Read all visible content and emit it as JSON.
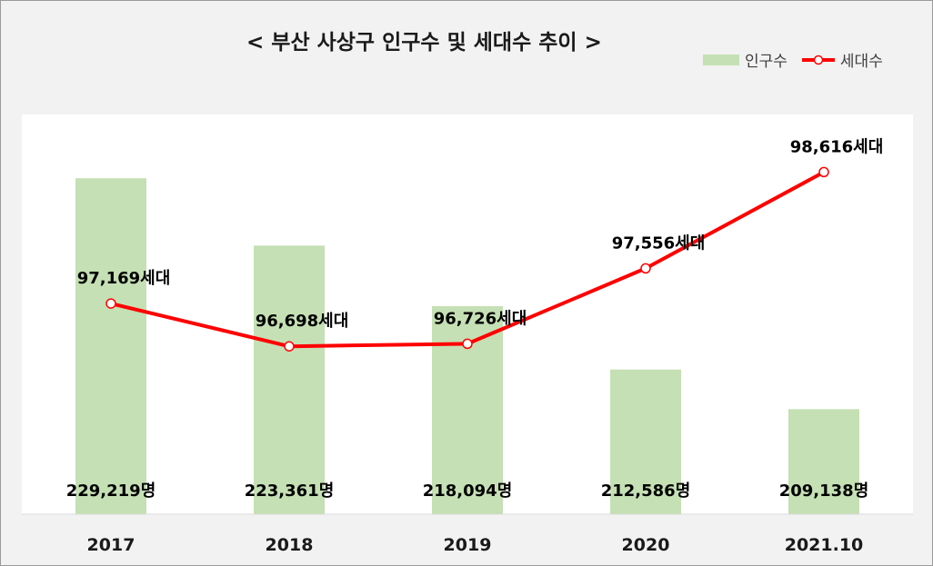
{
  "title": "< 부산 사상구 인구수 및 세대수 추이 >",
  "legend": {
    "bar_label": "인구수",
    "line_label": "세대수"
  },
  "colors": {
    "bar": "#c5e0b4",
    "line": "#ff0000",
    "background": "#f2f2f2",
    "plot": "#ffffff"
  },
  "chart_data": {
    "type": "bar",
    "title": "< 부산 사상구 인구수 및 세대수 추이 >",
    "categories": [
      "2017",
      "2018",
      "2019",
      "2020",
      "2021.10"
    ],
    "series": [
      {
        "name": "인구수",
        "type": "bar",
        "values": [
          229219,
          223361,
          218094,
          212586,
          209138
        ],
        "labels": [
          "229,219명",
          "223,361명",
          "218,094명",
          "212,586명",
          "209,138명"
        ],
        "ylim": [
          200000,
          232000
        ]
      },
      {
        "name": "세대수",
        "type": "line",
        "values": [
          97169,
          96698,
          96726,
          97556,
          98616
        ],
        "labels": [
          "97,169세대",
          "96,698세대",
          "96,726세대",
          "97,556세대",
          "98,616세대"
        ],
        "ylim": [
          95900,
          99100
        ]
      }
    ],
    "legend_position": "top-right",
    "grid": false
  }
}
